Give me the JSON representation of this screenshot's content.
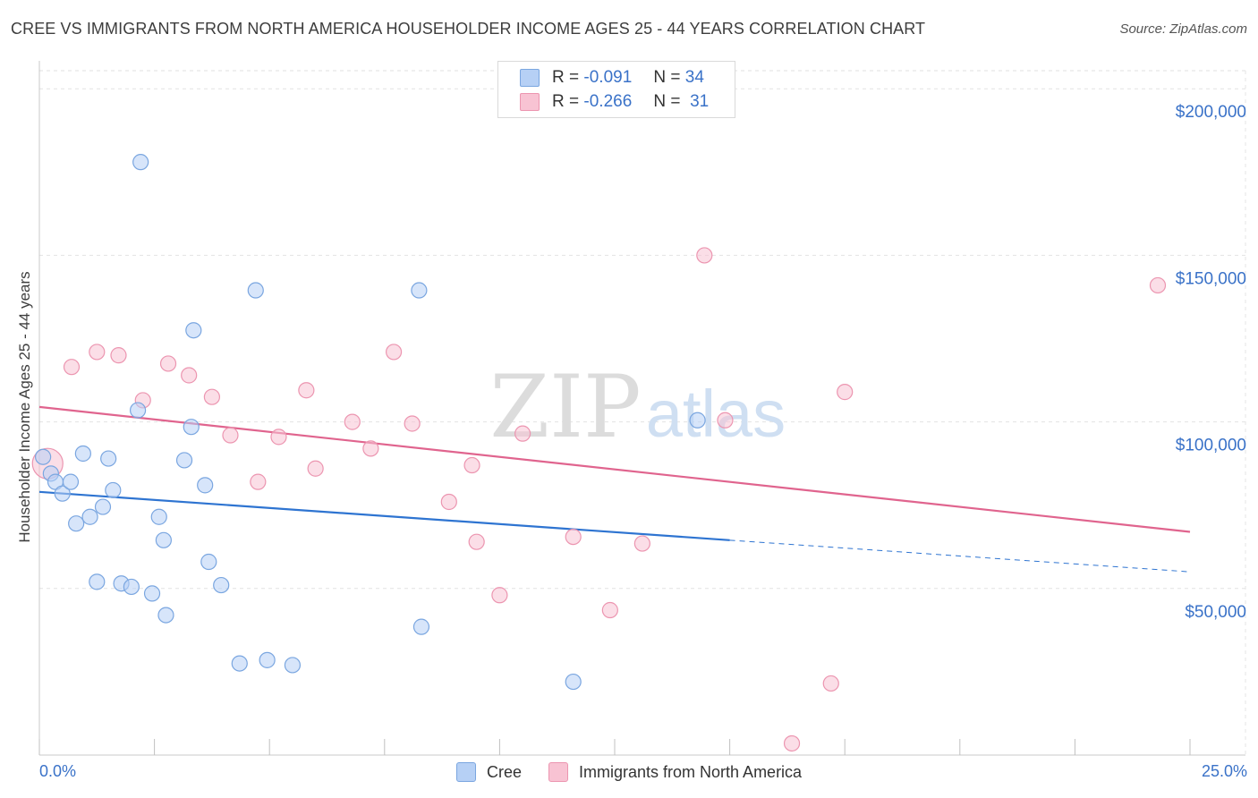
{
  "title": "CREE VS IMMIGRANTS FROM NORTH AMERICA HOUSEHOLDER INCOME AGES 25 - 44 YEARS CORRELATION CHART",
  "source": "Source: ZipAtlas.com",
  "watermark": {
    "zip": "ZIP",
    "atlas": "atlas"
  },
  "legend": {
    "r_label": "R =",
    "n_label": "N =",
    "cree": {
      "r": "-0.091",
      "n": "34"
    },
    "imm": {
      "r": "-0.266",
      "n": "31"
    }
  },
  "bottom_legend": {
    "cree": "Cree",
    "imm": "Immigrants from North America"
  },
  "colors": {
    "cree_fill": "#b6d0f5",
    "cree_stroke": "#7aa6e0",
    "cree_line": "#2e74d1",
    "imm_fill": "#f8c3d3",
    "imm_stroke": "#ec95b0",
    "imm_line": "#e0648e",
    "axis_label": "#3a72c8",
    "grid": "#e2e2e2"
  },
  "chart_data": {
    "type": "scatter",
    "title": "CREE VS IMMIGRANTS FROM NORTH AMERICA HOUSEHOLDER INCOME AGES 25 - 44 YEARS CORRELATION CHART",
    "xlabel": "",
    "ylabel": "Householder Income Ages 25 - 44 years",
    "xlim": [
      0,
      25
    ],
    "ylim": [
      0,
      210000
    ],
    "x_tick_labels": [
      "0.0%",
      "25.0%"
    ],
    "y_ticks": [
      {
        "value": 50000,
        "label": "$50,000"
      },
      {
        "value": 100000,
        "label": "$100,000"
      },
      {
        "value": 150000,
        "label": "$150,000"
      },
      {
        "value": 200000,
        "label": "$200,000"
      }
    ],
    "series": [
      {
        "name": "Cree",
        "r": -0.091,
        "n": 34,
        "trend": {
          "x0": 0,
          "y0": 79000,
          "x1": 15,
          "y1": 64500,
          "dash_to_x": 25,
          "dash_to_y": 55000
        },
        "points": [
          [
            0.08,
            89500
          ],
          [
            0.25,
            84500
          ],
          [
            0.35,
            82000
          ],
          [
            0.5,
            78500
          ],
          [
            0.68,
            82000
          ],
          [
            0.8,
            69500
          ],
          [
            0.95,
            90500
          ],
          [
            1.1,
            71500
          ],
          [
            1.25,
            52000
          ],
          [
            1.38,
            74500
          ],
          [
            1.5,
            89000
          ],
          [
            1.6,
            79500
          ],
          [
            1.78,
            51500
          ],
          [
            2.0,
            50500
          ],
          [
            2.14,
            103500
          ],
          [
            2.2,
            178000
          ],
          [
            2.45,
            48500
          ],
          [
            2.6,
            71500
          ],
          [
            2.7,
            64500
          ],
          [
            2.75,
            42000
          ],
          [
            3.15,
            88500
          ],
          [
            3.3,
            98500
          ],
          [
            3.35,
            127500
          ],
          [
            3.6,
            81000
          ],
          [
            3.68,
            58000
          ],
          [
            3.95,
            51000
          ],
          [
            4.35,
            27500
          ],
          [
            4.7,
            139500
          ],
          [
            4.95,
            28500
          ],
          [
            5.5,
            27000
          ],
          [
            8.25,
            139500
          ],
          [
            8.3,
            38500
          ],
          [
            11.6,
            22000
          ],
          [
            14.3,
            100500
          ]
        ]
      },
      {
        "name": "Immigrants from North America",
        "r": -0.266,
        "n": 31,
        "trend": {
          "x0": 0,
          "y0": 104500,
          "x1": 25,
          "y1": 67000
        },
        "points": [
          [
            0.18,
            87500
          ],
          [
            0.7,
            116500
          ],
          [
            1.25,
            121000
          ],
          [
            1.72,
            120000
          ],
          [
            2.25,
            106500
          ],
          [
            2.8,
            117500
          ],
          [
            3.25,
            114000
          ],
          [
            3.75,
            107500
          ],
          [
            4.15,
            96000
          ],
          [
            4.75,
            82000
          ],
          [
            5.2,
            95500
          ],
          [
            5.8,
            109500
          ],
          [
            6.0,
            86000
          ],
          [
            6.8,
            100000
          ],
          [
            7.2,
            92000
          ],
          [
            7.7,
            121000
          ],
          [
            8.1,
            99500
          ],
          [
            8.9,
            76000
          ],
          [
            9.4,
            87000
          ],
          [
            9.5,
            64000
          ],
          [
            10.0,
            48000
          ],
          [
            10.5,
            96500
          ],
          [
            11.6,
            65500
          ],
          [
            12.4,
            43500
          ],
          [
            13.1,
            63500
          ],
          [
            14.45,
            150000
          ],
          [
            14.9,
            100500
          ],
          [
            16.35,
            3500
          ],
          [
            17.2,
            21500
          ],
          [
            17.5,
            109000
          ],
          [
            24.3,
            141000
          ]
        ]
      }
    ]
  }
}
